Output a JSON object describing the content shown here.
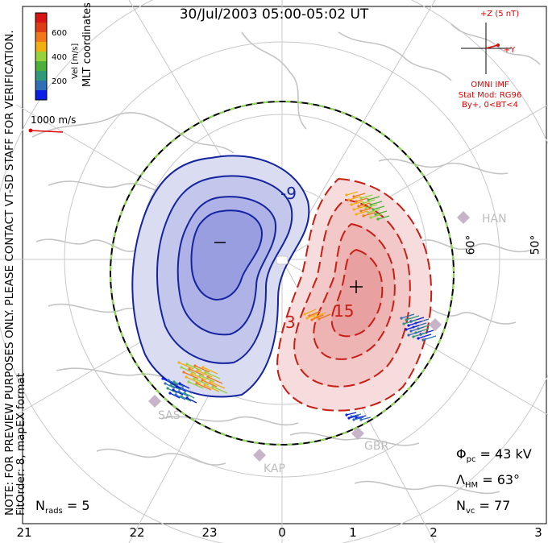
{
  "title": "30/Jul/2003 05:00-05:02 UT",
  "colorbar": {
    "unit_label": "Vel [m/s]",
    "ticks": [
      "600",
      "400",
      "200"
    ],
    "colors": [
      "#0a1ee8",
      "#2f6fb8",
      "#2f9a7a",
      "#4caf3a",
      "#98d23a",
      "#f0b010",
      "#f07818",
      "#e03c14",
      "#d81414"
    ]
  },
  "coords_label": "MLT coordinates",
  "scale_vector": {
    "label": "1000 m/s",
    "color": "#e00000"
  },
  "imf": {
    "top_label": "+Z (5 nT)",
    "y_label": "+Y",
    "lines": [
      "OMNI IMF",
      "Stat Mod: RG96",
      "By+, 0<BT<4"
    ]
  },
  "left_notes": {
    "line1": "NOTE: FOR PREVIEW PURPOSES ONLY. PLEASE CONTACT VT-SD STAFF FOR VERIFICATION.",
    "line2": "FitOrder: 8, mapEX format"
  },
  "contours": {
    "negative_label": "-9",
    "negative_min_marker": "–",
    "positive_label_1": "3",
    "positive_label_2": "15",
    "positive_max_marker": "+",
    "negative_color": "#1424a0",
    "positive_color": "#c81e14"
  },
  "latitude_labels": [
    "60°",
    "50°"
  ],
  "radar_sites": [
    "HAN",
    "SAS",
    "KAP",
    "GBR"
  ],
  "stats": {
    "nrads_label": "N",
    "nrads_sub": "rads",
    "nrads_value": " = 5",
    "phi_label": "Φ",
    "phi_sub": "pc",
    "phi_value": " = 43 kV",
    "lambda_label": "Λ",
    "lambda_sub": "HM",
    "lambda_value": " = 63°",
    "nvc_label": "N",
    "nvc_sub": "vc",
    "nvc_value": " = 77"
  },
  "mlt_ticks": [
    "21",
    "22",
    "23",
    "0",
    "1",
    "2",
    "3"
  ]
}
